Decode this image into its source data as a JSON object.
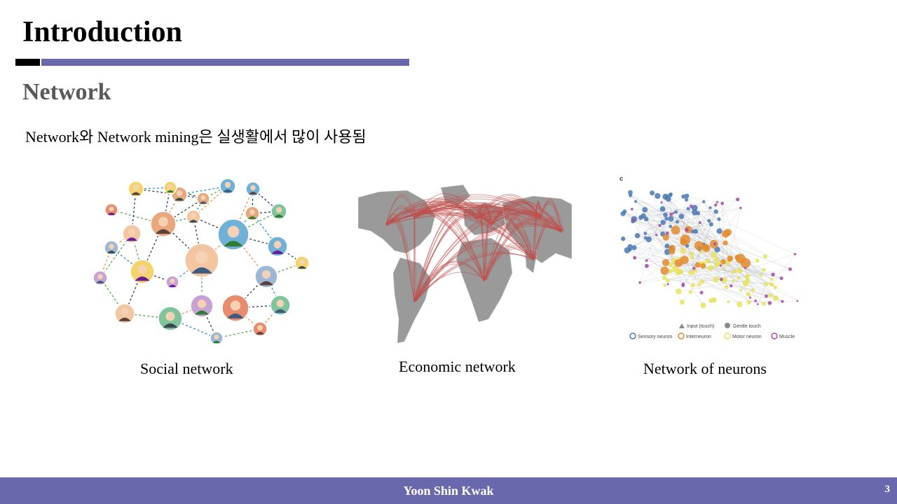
{
  "slide": {
    "title": "Introduction",
    "subtitle": "Network",
    "body": "Network와 Network mining은 실생활에서 많이 사용됨"
  },
  "figures": {
    "social": {
      "caption": "Social network"
    },
    "economic": {
      "caption": "Economic network"
    },
    "neurons": {
      "caption": "Network of neurons",
      "panel_label": "c",
      "legend": {
        "input_touch": "Input (touch)",
        "gentle_touch": "Gentle touch",
        "sensory": "Sensory neuron",
        "interneuron": "Interneuron",
        "motor": "Motor neuron",
        "muscle": "Muscle"
      }
    }
  },
  "footer": {
    "author": "Yoon Shin Kwak",
    "page_number": "3"
  },
  "colors": {
    "accent": "#6a68ad",
    "title": "#000000",
    "subtitle": "#595959",
    "map_land": "#9a9a9a",
    "map_routes": "#c0504d",
    "neuron_sensory": "#4a79b5",
    "neuron_inter": "#e38b2c",
    "neuron_motor": "#e8e35a",
    "neuron_muscle": "#a64ca6"
  }
}
